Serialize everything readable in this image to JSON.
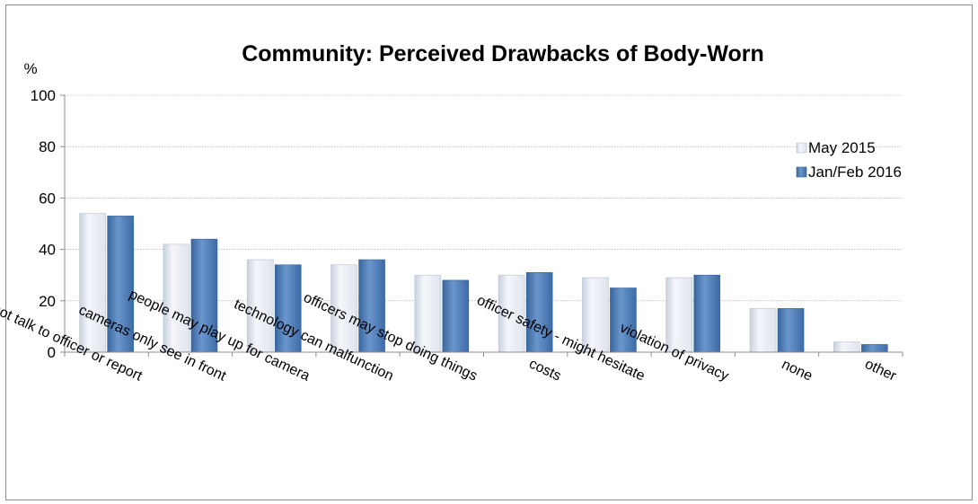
{
  "chart_data": {
    "type": "bar",
    "title": "Community:  Perceived Drawbacks of Body-Worn",
    "ylabel": "%",
    "xlabel": "",
    "ylim": [
      0,
      100
    ],
    "yticks": [
      0,
      20,
      40,
      60,
      80,
      100
    ],
    "grid": true,
    "legend_position": "right",
    "categories": [
      "people might not talk to officer or report",
      "cameras only see in front",
      "people may play up for camera",
      "technology can malfunction",
      "officers may stop doing things",
      "costs",
      "officer safety - might hesitate",
      "violation of privacy",
      "none",
      "other"
    ],
    "series": [
      {
        "name": "May 2015",
        "color": "#e4e9f1",
        "values": [
          54,
          42,
          36,
          34,
          30,
          30,
          29,
          29,
          17,
          4
        ]
      },
      {
        "name": "Jan/Feb 2016",
        "color": "#4f7fba",
        "values": [
          53,
          44,
          34,
          36,
          28,
          31,
          25,
          30,
          17,
          3
        ]
      }
    ]
  }
}
